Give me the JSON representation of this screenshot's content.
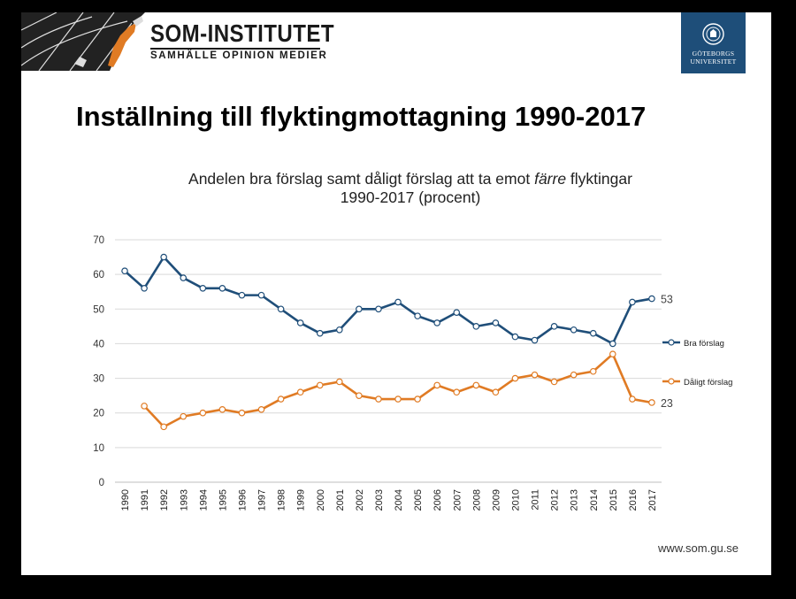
{
  "header": {
    "brand_name": "SOM-INSTITUTET",
    "brand_tagline": "SAMHÄLLE OPINION MEDIER",
    "university_name": "GÖTEBORGS\nUNIVERSITET"
  },
  "slide": {
    "title": "Inställning till flyktingmottagning 1990-2017"
  },
  "chart_title": {
    "before": "Andelen bra förslag samt dåligt förslag att ta emot ",
    "emphasis": "färre",
    "after": " flyktingar",
    "line2": "1990-2017 (procent)"
  },
  "footer": {
    "url": "www.som.gu.se"
  },
  "colors": {
    "bra": "#1f4e79",
    "daligt": "#e07b24",
    "grid": "#d9d9d9",
    "badge": "#1e4e79"
  },
  "chart_data": {
    "type": "line",
    "x": [
      "1990",
      "1991",
      "1992",
      "1993",
      "1994",
      "1995",
      "1996",
      "1997",
      "1998",
      "1999",
      "2000",
      "2001",
      "2002",
      "2003",
      "2004",
      "2005",
      "2006",
      "2007",
      "2008",
      "2009",
      "2010",
      "2011",
      "2012",
      "2013",
      "2014",
      "2015",
      "2016",
      "2017"
    ],
    "yticks": [
      "0",
      "10",
      "20",
      "30",
      "40",
      "50",
      "60",
      "70"
    ],
    "ylim": [
      0,
      70
    ],
    "grid": true,
    "legend_position": "right",
    "series": [
      {
        "name": "Bra förslag",
        "color": "#1f4e79",
        "values": [
          61,
          56,
          65,
          59,
          56,
          56,
          54,
          54,
          50,
          46,
          43,
          44,
          50,
          50,
          52,
          48,
          46,
          49,
          45,
          46,
          42,
          41,
          45,
          44,
          43,
          40,
          52,
          53
        ],
        "end_label": "53"
      },
      {
        "name": "Dåligt förslag",
        "color": "#e07b24",
        "values": [
          null,
          22,
          16,
          19,
          20,
          21,
          20,
          21,
          24,
          26,
          28,
          29,
          25,
          24,
          24,
          24,
          28,
          26,
          28,
          26,
          30,
          31,
          29,
          31,
          32,
          37,
          24,
          23
        ],
        "end_label": "23"
      }
    ]
  }
}
